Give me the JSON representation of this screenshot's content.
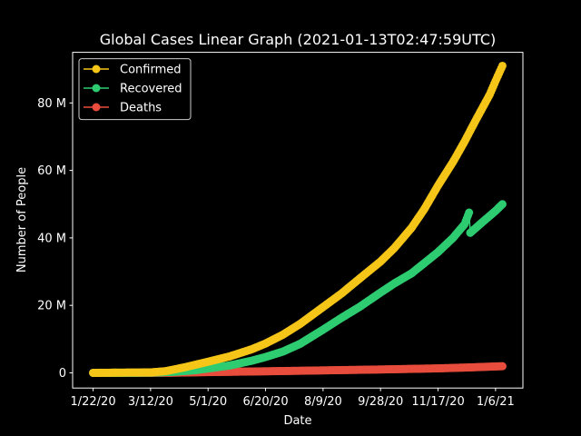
{
  "chart_data": {
    "type": "line",
    "title": "Global Cases Linear Graph (2021-01-13T02:47:59UTC)",
    "xlabel": "Date",
    "ylabel": "Number of People",
    "x_range": [
      "2021-01-07",
      "2021-01-13"
    ],
    "ylim": [
      -4.5,
      95
    ],
    "y_ticks": [
      {
        "value": 0,
        "label": "0"
      },
      {
        "value": 20,
        "label": "20 M"
      },
      {
        "value": 40,
        "label": "40 M"
      },
      {
        "value": 60,
        "label": "60 M"
      },
      {
        "value": 80,
        "label": "80 M"
      }
    ],
    "x_ticks": [
      {
        "date": "2020-01-22",
        "label": "1/22/20"
      },
      {
        "date": "2020-03-12",
        "label": "3/12/20"
      },
      {
        "date": "2020-05-01",
        "label": "5/1/20"
      },
      {
        "date": "2020-06-20",
        "label": "6/20/20"
      },
      {
        "date": "2020-08-09",
        "label": "8/9/20"
      },
      {
        "date": "2020-09-28",
        "label": "9/28/20"
      },
      {
        "date": "2020-11-17",
        "label": "11/17/20"
      },
      {
        "date": "2021-01-06",
        "label": "1/6/21"
      }
    ],
    "legend_position": "upper-left",
    "series": [
      {
        "name": "Confirmed",
        "color": "#f5c518",
        "points": [
          [
            "2020-01-22",
            0.0
          ],
          [
            "2020-02-15",
            0.07
          ],
          [
            "2020-03-12",
            0.13
          ],
          [
            "2020-03-25",
            0.5
          ],
          [
            "2020-04-10",
            1.6
          ],
          [
            "2020-05-01",
            3.3
          ],
          [
            "2020-05-20",
            4.9
          ],
          [
            "2020-06-08",
            7.0
          ],
          [
            "2020-06-20",
            8.7
          ],
          [
            "2020-07-05",
            11.3
          ],
          [
            "2020-07-20",
            14.5
          ],
          [
            "2020-08-09",
            19.5
          ],
          [
            "2020-08-25",
            23.5
          ],
          [
            "2020-09-10",
            28.0
          ],
          [
            "2020-09-28",
            33.0
          ],
          [
            "2020-10-10",
            37.0
          ],
          [
            "2020-10-25",
            43.0
          ],
          [
            "2020-11-05",
            48.5
          ],
          [
            "2020-11-17",
            55.5
          ],
          [
            "2020-11-30",
            62.5
          ],
          [
            "2020-12-10",
            68.5
          ],
          [
            "2020-12-20",
            75.0
          ],
          [
            "2021-01-01",
            82.5
          ],
          [
            "2021-01-06",
            86.5
          ],
          [
            "2021-01-12",
            91.0
          ]
        ]
      },
      {
        "name": "Recovered",
        "color": "#2ecc71",
        "points": [
          [
            "2020-01-22",
            0.0
          ],
          [
            "2020-02-15",
            0.02
          ],
          [
            "2020-03-12",
            0.06
          ],
          [
            "2020-04-01",
            0.3
          ],
          [
            "2020-04-20",
            0.8
          ],
          [
            "2020-05-01",
            1.3
          ],
          [
            "2020-05-20",
            2.2
          ],
          [
            "2020-06-08",
            3.6
          ],
          [
            "2020-06-20",
            4.7
          ],
          [
            "2020-07-05",
            6.3
          ],
          [
            "2020-07-20",
            8.6
          ],
          [
            "2020-08-09",
            12.8
          ],
          [
            "2020-08-25",
            16.3
          ],
          [
            "2020-09-10",
            19.6
          ],
          [
            "2020-09-28",
            23.8
          ],
          [
            "2020-10-10",
            26.5
          ],
          [
            "2020-10-25",
            29.5
          ],
          [
            "2020-11-05",
            32.5
          ],
          [
            "2020-11-17",
            35.8
          ],
          [
            "2020-11-30",
            40.0
          ],
          [
            "2020-12-10",
            44.0
          ],
          [
            "2020-12-14",
            47.5
          ],
          [
            "2020-12-15",
            41.5
          ],
          [
            "2020-12-25",
            44.5
          ],
          [
            "2021-01-06",
            48.0
          ],
          [
            "2021-01-12",
            50.0
          ]
        ]
      },
      {
        "name": "Deaths",
        "color": "#e74c3c",
        "points": [
          [
            "2020-01-22",
            0.0
          ],
          [
            "2020-03-12",
            0.005
          ],
          [
            "2020-04-01",
            0.05
          ],
          [
            "2020-05-01",
            0.23
          ],
          [
            "2020-06-20",
            0.46
          ],
          [
            "2020-08-09",
            0.73
          ],
          [
            "2020-09-28",
            1.0
          ],
          [
            "2020-11-17",
            1.33
          ],
          [
            "2020-12-15",
            1.62
          ],
          [
            "2021-01-06",
            1.9
          ],
          [
            "2021-01-12",
            1.97
          ]
        ]
      }
    ]
  }
}
